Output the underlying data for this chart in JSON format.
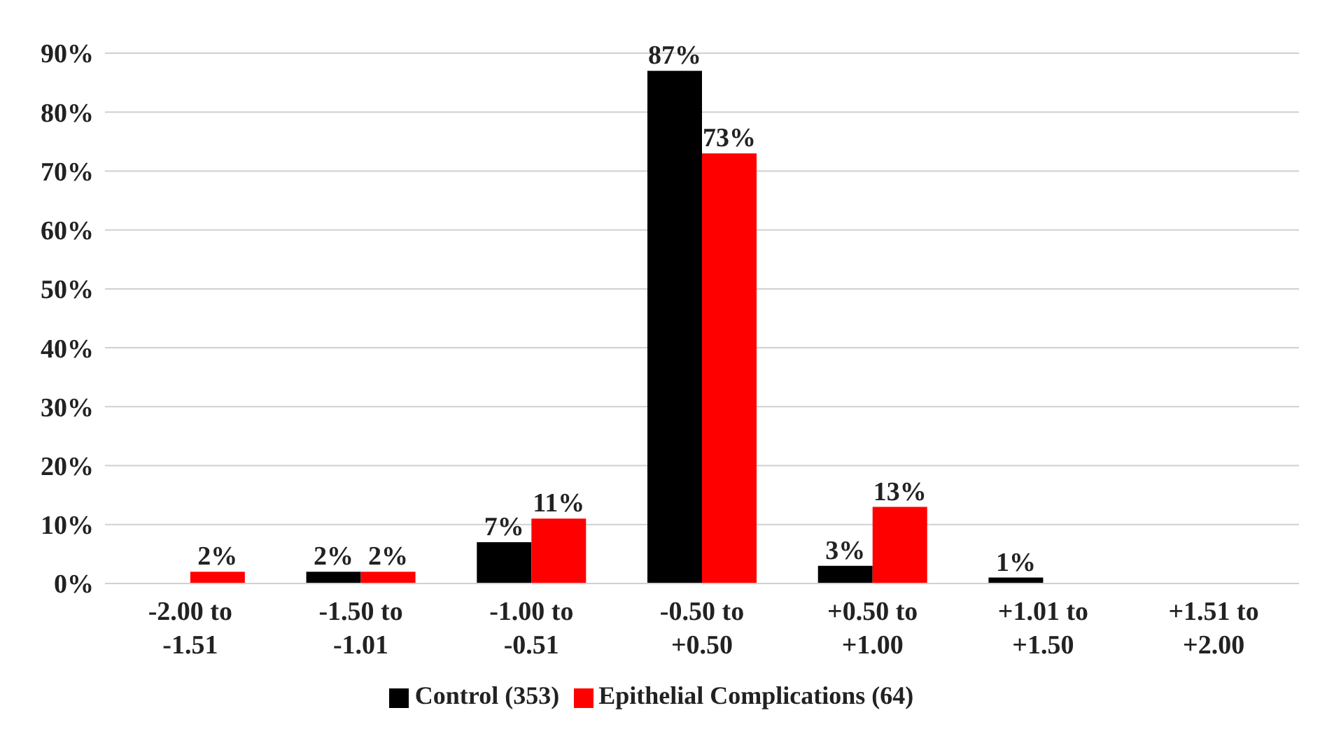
{
  "chart_data": {
    "type": "bar",
    "categories": [
      "-2.00 to -1.51",
      "-1.50 to -1.01",
      "-1.00 to -0.51",
      "-0.50 to +0.50",
      "+0.50 to +1.00",
      "+1.01 to +1.50",
      "+1.51 to +2.00"
    ],
    "series": [
      {
        "name": "Control (353)",
        "color": "#000000",
        "values": [
          null,
          2,
          7,
          87,
          3,
          1,
          null
        ],
        "value_labels": [
          null,
          "2%",
          "7%",
          "87%",
          "3%",
          "1%",
          null
        ]
      },
      {
        "name": "Epithelial Complications (64)",
        "color": "#ff0000",
        "values": [
          2,
          2,
          11,
          73,
          13,
          null,
          null
        ],
        "value_labels": [
          "2%",
          "2%",
          "11%",
          "73%",
          "13%",
          null,
          null
        ]
      }
    ],
    "ylim": [
      0,
      90
    ],
    "yticks": [
      {
        "value": 0,
        "label": "0%"
      },
      {
        "value": 10,
        "label": "10%"
      },
      {
        "value": 20,
        "label": "20%"
      },
      {
        "value": 30,
        "label": "30%"
      },
      {
        "value": 40,
        "label": "40%"
      },
      {
        "value": 50,
        "label": "50%"
      },
      {
        "value": 60,
        "label": "60%"
      },
      {
        "value": 70,
        "label": "70%"
      },
      {
        "value": 80,
        "label": "80%"
      },
      {
        "value": 90,
        "label": "90%"
      }
    ],
    "grid": "y",
    "legend": "bottom"
  }
}
